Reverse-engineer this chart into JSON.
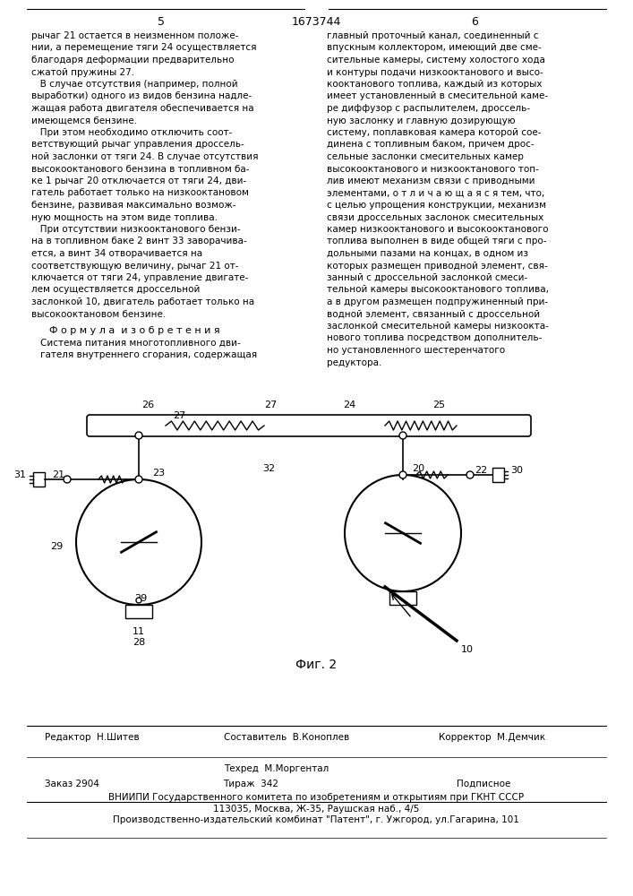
{
  "page_num_left": "5",
  "patent_num": "1673744",
  "page_num_right": "6",
  "left_col_text": [
    "рычаг 21 остается в неизменном положе-",
    "нии, а перемещение тяги 24 осуществляется",
    "благодаря деформации предварительно",
    "сжатой пружины 27.",
    "   В случае отсутствия (например, полной",
    "выработки) одного из видов бензина надле-",
    "жащая работа двигателя обеспечивается на",
    "имеющемся бензине.",
    "   При этом необходимо отключить соот-",
    "ветствующий рычаг управления дроссель-",
    "ной заслонки от тяги 24. В случае отсутствия",
    "высокооктанового бензина в топливном ба-",
    "ке 1 рычаг 20 отключается от тяги 24, дви-",
    "гатель работает только на низкооктановом",
    "бензине, развивая максимально возмож-",
    "ную мощность на этом виде топлива.",
    "   При отсутствии низкооктанового бензи-",
    "на в топливном баке 2 винт 33 заворачива-",
    "ется, а винт 34 отворачивается на",
    "соответствующую величину, рычаг 21 от-",
    "ключается от тяги 24, управление двигате-",
    "лем осуществляется дроссельной",
    "заслонкой 10, двигатель работает только на",
    "высокооктановом бензине."
  ],
  "right_col_text": [
    "главный проточный канал, соединенный с",
    "впускным коллектором, имеющий две сме-",
    "сительные камеры, систему холостого хода",
    "и контуры подачи низкооктанового и высо-",
    "кооктанового топлива, каждый из которых",
    "имеет установленный в смесительной каме-",
    "ре диффузор с распылителем, дроссель-",
    "ную заслонку и главную дозирующую",
    "систему, поплавковая камера которой сое-",
    "динена с топливным баком, причем дрос-",
    "сельные заслонки смесительных камер",
    "высокооктанового и низкооктанового топ-",
    "лив имеют механизм связи с приводными",
    "элементами, о т л и ч а ю щ а я с я тем, что,",
    "с целью упрощения конструкции, механизм",
    "связи дроссельных заслонок смесительных",
    "камер низкооктанового и высокооктанового",
    "топлива выполнен в виде общей тяги с про-",
    "дольными пазами на концах, в одном из",
    "которых размещен приводной элемент, свя-",
    "занный с дроссельной заслонкой смеси-",
    "тельной камеры высокооктанового топлива,",
    "а в другом размещен подпружиненный при-",
    "водной элемент, связанный с дроссельной",
    "заслонкой смесительной камеры низкоокта-",
    "нового топлива посредством дополнитель-",
    "но установленного шестеренчатого",
    "редуктора."
  ],
  "formula_header": "Ф о р м у л а  и з о б р е т е н и я",
  "formula_title": "Система питания многотопливного дви-",
  "formula_title2": "гателя внутреннего сгорания, содержащая",
  "fig_label": "Фиг. 2",
  "editor_line": "Редактор  Н.Шитев",
  "compiler_line": "Составитель  В.Коноплев",
  "corrector_line": "Корректор  М.Демчик",
  "techred_line": "Техред  М.Моргентал",
  "order_line": "Заказ 2904",
  "tirazh_line": "Тираж  342",
  "podpisnoe_line": "Подписное",
  "vniipи_line": "ВНИИПИ Государственного комитета по изобретениям и открытиям при ГКНТ СССР",
  "address_line": "113035, Москва, Ж-35, Раушская наб., 4/5",
  "printer_line": "Производственно-издательский комбинат \"Патент\", г. Ужгород, ул.Гагарина, 101",
  "bg_color": "#ffffff",
  "text_color": "#000000",
  "line_color": "#000000"
}
